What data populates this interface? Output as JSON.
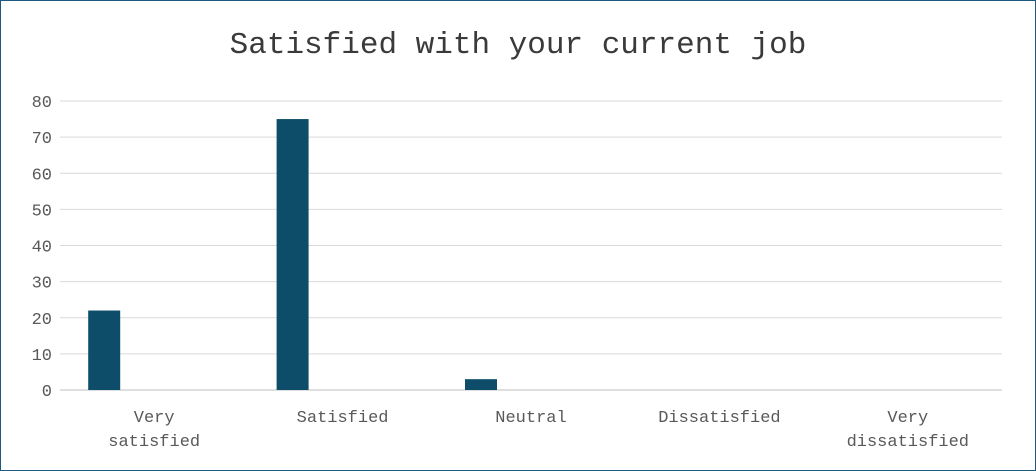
{
  "chart_data": {
    "type": "bar",
    "title": "Satisfied with your current job",
    "categories": [
      [
        "Very",
        "satisfied"
      ],
      [
        "Satisfied"
      ],
      [
        "Neutral"
      ],
      [
        "Dissatisfied"
      ],
      [
        "Very",
        "dissatisfied"
      ]
    ],
    "values": [
      22,
      75,
      3,
      0,
      0
    ],
    "ylim": [
      0,
      80
    ],
    "yticks": [
      0,
      10,
      20,
      30,
      40,
      50,
      60,
      70,
      80
    ],
    "grid": true,
    "legend": "none",
    "bar_color": "#0e4d6a",
    "grid_color": "#d9d9d9",
    "axis_color": "#bfbfbf"
  }
}
